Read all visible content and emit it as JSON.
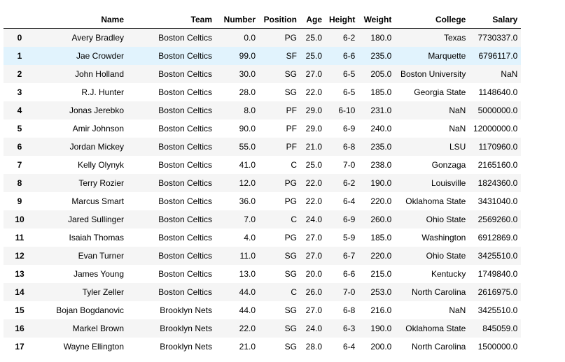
{
  "table": {
    "columns": [
      "",
      "Name",
      "Team",
      "Number",
      "Position",
      "Age",
      "Height",
      "Weight",
      "College",
      "Salary"
    ],
    "hovered_row": 1,
    "rows": [
      [
        "0",
        "Avery Bradley",
        "Boston Celtics",
        "0.0",
        "PG",
        "25.0",
        "6-2",
        "180.0",
        "Texas",
        "7730337.0"
      ],
      [
        "1",
        "Jae Crowder",
        "Boston Celtics",
        "99.0",
        "SF",
        "25.0",
        "6-6",
        "235.0",
        "Marquette",
        "6796117.0"
      ],
      [
        "2",
        "John Holland",
        "Boston Celtics",
        "30.0",
        "SG",
        "27.0",
        "6-5",
        "205.0",
        "Boston University",
        "NaN"
      ],
      [
        "3",
        "R.J. Hunter",
        "Boston Celtics",
        "28.0",
        "SG",
        "22.0",
        "6-5",
        "185.0",
        "Georgia State",
        "1148640.0"
      ],
      [
        "4",
        "Jonas Jerebko",
        "Boston Celtics",
        "8.0",
        "PF",
        "29.0",
        "6-10",
        "231.0",
        "NaN",
        "5000000.0"
      ],
      [
        "5",
        "Amir Johnson",
        "Boston Celtics",
        "90.0",
        "PF",
        "29.0",
        "6-9",
        "240.0",
        "NaN",
        "12000000.0"
      ],
      [
        "6",
        "Jordan Mickey",
        "Boston Celtics",
        "55.0",
        "PF",
        "21.0",
        "6-8",
        "235.0",
        "LSU",
        "1170960.0"
      ],
      [
        "7",
        "Kelly Olynyk",
        "Boston Celtics",
        "41.0",
        "C",
        "25.0",
        "7-0",
        "238.0",
        "Gonzaga",
        "2165160.0"
      ],
      [
        "8",
        "Terry Rozier",
        "Boston Celtics",
        "12.0",
        "PG",
        "22.0",
        "6-2",
        "190.0",
        "Louisville",
        "1824360.0"
      ],
      [
        "9",
        "Marcus Smart",
        "Boston Celtics",
        "36.0",
        "PG",
        "22.0",
        "6-4",
        "220.0",
        "Oklahoma State",
        "3431040.0"
      ],
      [
        "10",
        "Jared Sullinger",
        "Boston Celtics",
        "7.0",
        "C",
        "24.0",
        "6-9",
        "260.0",
        "Ohio State",
        "2569260.0"
      ],
      [
        "11",
        "Isaiah Thomas",
        "Boston Celtics",
        "4.0",
        "PG",
        "27.0",
        "5-9",
        "185.0",
        "Washington",
        "6912869.0"
      ],
      [
        "12",
        "Evan Turner",
        "Boston Celtics",
        "11.0",
        "SG",
        "27.0",
        "6-7",
        "220.0",
        "Ohio State",
        "3425510.0"
      ],
      [
        "13",
        "James Young",
        "Boston Celtics",
        "13.0",
        "SG",
        "20.0",
        "6-6",
        "215.0",
        "Kentucky",
        "1749840.0"
      ],
      [
        "14",
        "Tyler Zeller",
        "Boston Celtics",
        "44.0",
        "C",
        "26.0",
        "7-0",
        "253.0",
        "North Carolina",
        "2616975.0"
      ],
      [
        "15",
        "Bojan Bogdanovic",
        "Brooklyn Nets",
        "44.0",
        "SG",
        "27.0",
        "6-8",
        "216.0",
        "NaN",
        "3425510.0"
      ],
      [
        "16",
        "Markel Brown",
        "Brooklyn Nets",
        "22.0",
        "SG",
        "24.0",
        "6-3",
        "190.0",
        "Oklahoma State",
        "845059.0"
      ],
      [
        "17",
        "Wayne Ellington",
        "Brooklyn Nets",
        "21.0",
        "SG",
        "28.0",
        "6-4",
        "200.0",
        "North Carolina",
        "1500000.0"
      ]
    ]
  }
}
